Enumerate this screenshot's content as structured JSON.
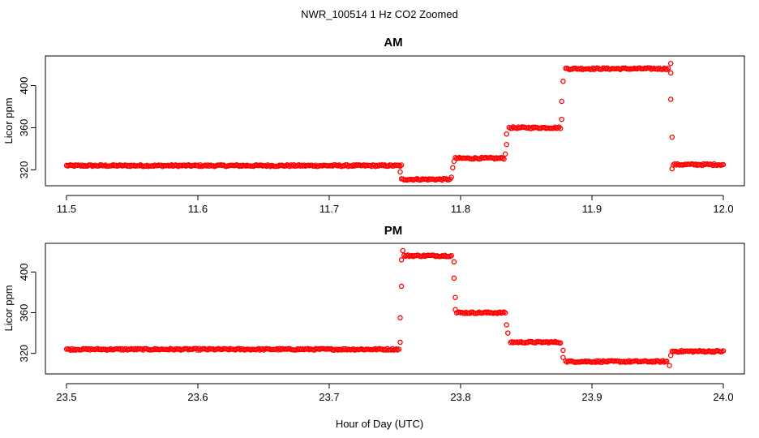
{
  "figure": {
    "title": "NWR_100514  1 Hz CO2 Zoomed",
    "xlabel": "Hour of Day (UTC)"
  },
  "chart_data": [
    {
      "type": "scatter",
      "title": "AM",
      "xlabel": "",
      "ylabel": "Licor ppm",
      "xlim": [
        11.5,
        12.0
      ],
      "ylim": [
        308,
        425
      ],
      "xticks": [
        "11.5",
        "11.6",
        "11.7",
        "11.8",
        "11.9",
        "12.0"
      ],
      "yticks": [
        "320",
        "360",
        "400"
      ],
      "marker_color": "#ff0000",
      "plateaus": [
        {
          "x_start": 11.5,
          "x_end": 11.755,
          "y": 324
        },
        {
          "x_start": 11.755,
          "x_end": 11.792,
          "y": 311
        },
        {
          "x_start": 11.796,
          "x_end": 11.833,
          "y": 331
        },
        {
          "x_start": 11.837,
          "x_end": 11.876,
          "y": 360
        },
        {
          "x_start": 11.88,
          "x_end": 11.958,
          "y": 416
        },
        {
          "x_start": 11.962,
          "x_end": 12.0,
          "y": 325
        }
      ],
      "transitions": [
        {
          "x": 11.754,
          "y": 318
        },
        {
          "x": 11.793,
          "y": 313
        },
        {
          "x": 11.794,
          "y": 322
        },
        {
          "x": 11.795,
          "y": 328
        },
        {
          "x": 11.834,
          "y": 335
        },
        {
          "x": 11.835,
          "y": 344
        },
        {
          "x": 11.835,
          "y": 354
        },
        {
          "x": 11.877,
          "y": 368
        },
        {
          "x": 11.877,
          "y": 385
        },
        {
          "x": 11.878,
          "y": 404
        },
        {
          "x": 11.96,
          "y": 421
        },
        {
          "x": 11.96,
          "y": 412
        },
        {
          "x": 11.96,
          "y": 387
        },
        {
          "x": 11.961,
          "y": 351
        },
        {
          "x": 11.961,
          "y": 321
        }
      ]
    },
    {
      "type": "scatter",
      "title": "PM",
      "xlabel": "",
      "ylabel": "Licor ppm",
      "xlim": [
        23.5,
        24.0
      ],
      "ylim": [
        303,
        425
      ],
      "xticks": [
        "23.5",
        "23.6",
        "23.7",
        "23.8",
        "23.9",
        "24.0"
      ],
      "yticks": [
        "320",
        "360",
        "400"
      ],
      "marker_color": "#ff0000",
      "plateaus": [
        {
          "x_start": 23.5,
          "x_end": 23.753,
          "y": 324
        },
        {
          "x_start": 23.757,
          "x_end": 23.793,
          "y": 416
        },
        {
          "x_start": 23.797,
          "x_end": 23.834,
          "y": 360
        },
        {
          "x_start": 23.838,
          "x_end": 23.876,
          "y": 331
        },
        {
          "x_start": 23.88,
          "x_end": 23.957,
          "y": 312
        },
        {
          "x_start": 23.961,
          "x_end": 24.0,
          "y": 322
        }
      ],
      "transitions": [
        {
          "x": 23.754,
          "y": 331
        },
        {
          "x": 23.754,
          "y": 355
        },
        {
          "x": 23.755,
          "y": 386
        },
        {
          "x": 23.755,
          "y": 412
        },
        {
          "x": 23.756,
          "y": 421
        },
        {
          "x": 23.795,
          "y": 410
        },
        {
          "x": 23.795,
          "y": 394
        },
        {
          "x": 23.796,
          "y": 375
        },
        {
          "x": 23.796,
          "y": 363
        },
        {
          "x": 23.835,
          "y": 348
        },
        {
          "x": 23.836,
          "y": 340
        },
        {
          "x": 23.878,
          "y": 323
        },
        {
          "x": 23.878,
          "y": 316
        },
        {
          "x": 23.959,
          "y": 308
        },
        {
          "x": 23.96,
          "y": 318
        }
      ]
    }
  ]
}
